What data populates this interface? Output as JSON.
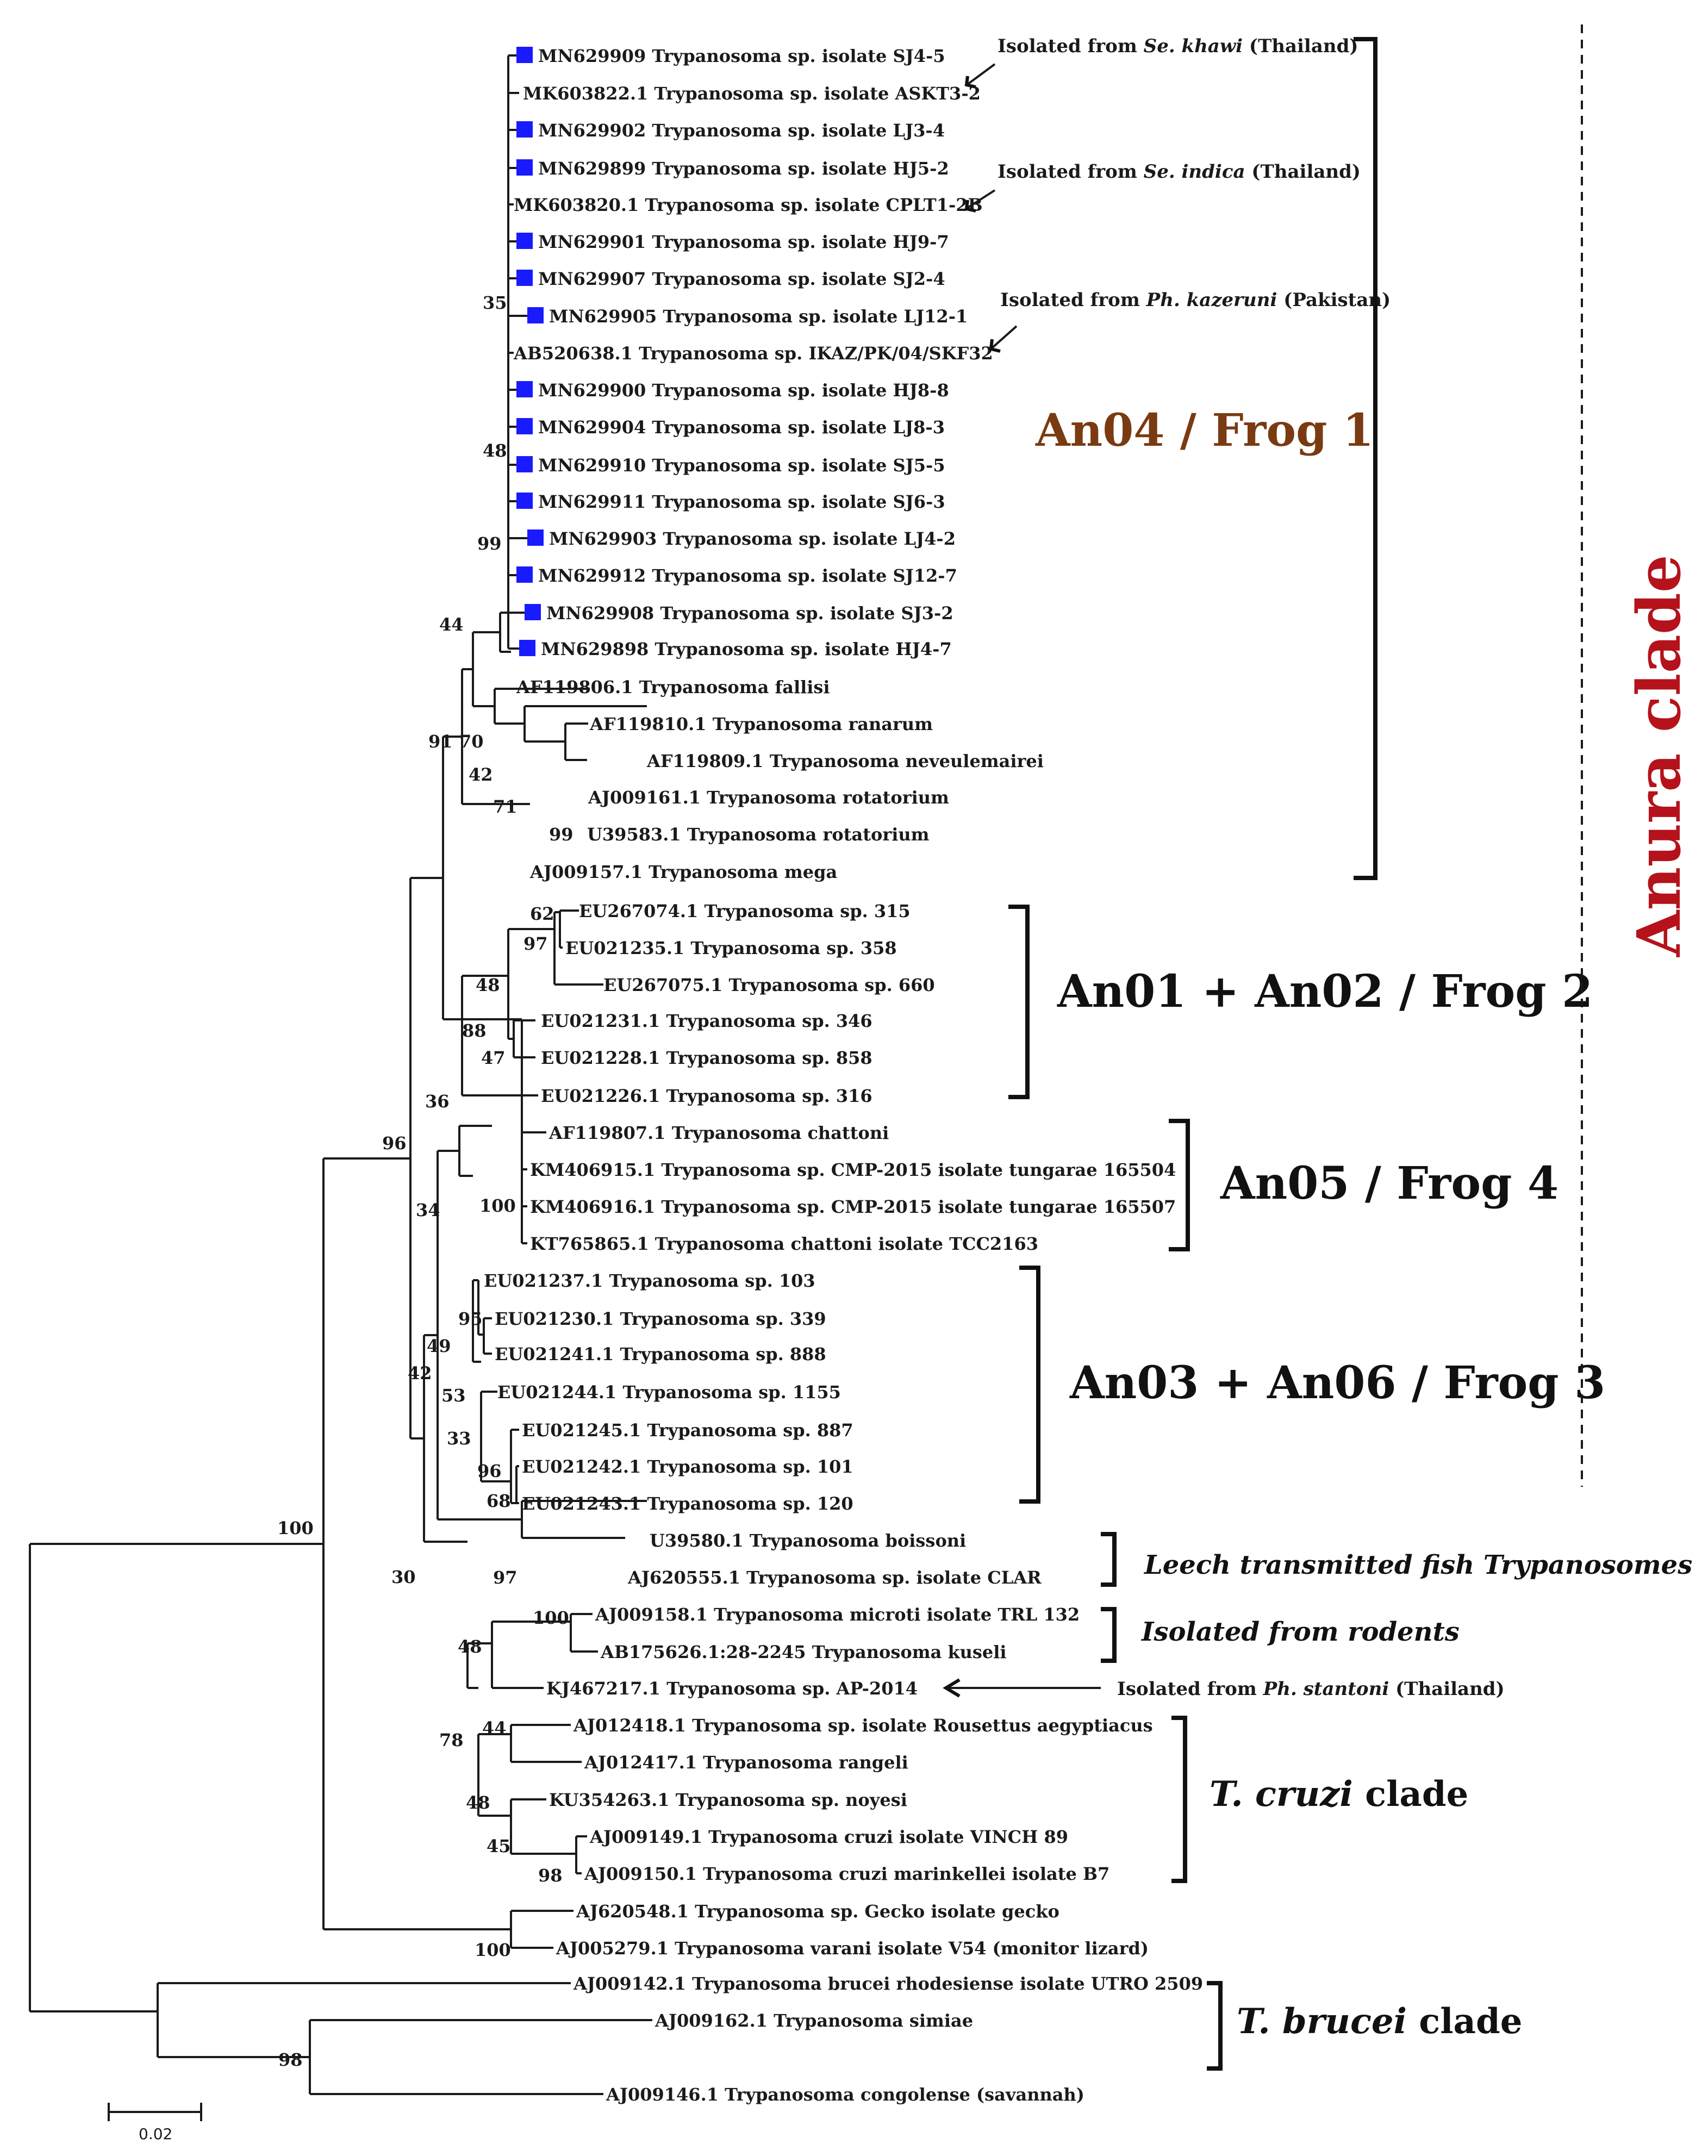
{
  "leaves": [
    "MN629909 Trypanosoma sp. isolate SJ4-5",
    "MK603822.1 Trypanosoma sp. isolate ASKT3-2",
    "MN629902 Trypanosoma sp. isolate LJ3-4",
    "MN629899 Trypanosoma sp. isolate HJ5-2",
    "MK603820.1 Trypanosoma sp. isolate CPLT1-2B",
    "MN629901 Trypanosoma sp. isolate HJ9-7",
    "MN629907 Trypanosoma sp. isolate SJ2-4",
    "MN629905 Trypanosoma sp. isolate LJ12-1",
    "AB520638.1 Trypanosoma sp. IKAZ/PK/04/SKF32",
    "MN629900 Trypanosoma sp. isolate HJ8-8",
    "MN629904 Trypanosoma sp. isolate LJ8-3",
    "MN629910 Trypanosoma sp. isolate SJ5-5",
    "MN629911 Trypanosoma sp. isolate SJ6-3",
    "MN629903 Trypanosoma sp. isolate LJ4-2",
    "MN629912 Trypanosoma sp. isolate SJ12-7",
    "MN629908 Trypanosoma sp. isolate SJ3-2",
    "MN629898 Trypanosoma sp. isolate HJ4-7",
    "AF119806.1 Trypanosoma fallisi",
    "AF119810.1 Trypanosoma ranarum",
    "AF119809.1 Trypanosoma neveulemairei",
    "AJ009161.1 Trypanosoma rotatorium",
    "U39583.1 Trypanosoma rotatorium",
    "AJ009157.1 Trypanosoma mega",
    "EU267074.1 Trypanosoma sp. 315",
    "EU021235.1 Trypanosoma sp. 358",
    "EU267075.1 Trypanosoma sp. 660",
    "EU021231.1 Trypanosoma sp. 346",
    "EU021228.1 Trypanosoma sp. 858",
    "EU021226.1 Trypanosoma sp. 316",
    "AF119807.1 Trypanosoma chattoni",
    "KM406915.1 Trypanosoma sp. CMP-2015 isolate tungarae 165504",
    "KM406916.1 Trypanosoma sp. CMP-2015 isolate tungarae 165507",
    "KT765865.1 Trypanosoma chattoni isolate TCC2163",
    "EU021237.1 Trypanosoma sp. 103",
    "EU021230.1 Trypanosoma sp. 339",
    "EU021241.1 Trypanosoma sp. 888",
    "EU021244.1 Trypanosoma sp. 1155",
    "EU021245.1 Trypanosoma sp. 887",
    "EU021242.1 Trypanosoma sp. 101",
    "EU021243.1 Trypanosoma sp. 120",
    "U39580.1 Trypanosoma boissoni",
    "AJ620555.1 Trypanosoma sp. isolate CLAR",
    "AJ009158.1 Trypanosoma microti isolate TRL 132",
    "AB175626.1:28-2245 Trypanosoma kuseli",
    "KJ467217.1 Trypanosoma sp. AP-2014",
    "AJ012418.1 Trypanosoma sp. isolate Rousettus aegyptiacus",
    "AJ012417.1 Trypanosoma rangeli",
    "KU354263.1 Trypanosoma sp. noyesi",
    "AJ009149.1 Trypanosoma cruzi isolate VINCH 89",
    "AJ009150.1 Trypanosoma cruzi marinkellei isolate B7",
    "AJ620548.1 Trypanosoma sp. Gecko isolate gecko",
    "AJ005279.1 Trypanosoma varani isolate V54 (monitor lizard)",
    "AJ009142.1 Trypanosoma brucei rhodesiense isolate UTRO 2509",
    "AJ009162.1 Trypanosoma simiae",
    "AJ009146.1 Trypanosoma congolense (savannah)"
  ],
  "bootstraps": [
    "35",
    "48",
    "99",
    "44",
    "91",
    "70",
    "42",
    "71",
    "99",
    "62",
    "97",
    "48",
    "88",
    "47",
    "36",
    "96",
    "100",
    "34",
    "95",
    "49",
    "53",
    "42",
    "33",
    "96",
    "68",
    "100",
    "97",
    "30",
    "100",
    "48",
    "44",
    "78",
    "48",
    "45",
    "98",
    "100",
    "98"
  ],
  "notes": {
    "n1": {
      "pre": "Isolated from ",
      "italic": "Se. khawi",
      "post": " (Thailand)"
    },
    "n2": {
      "pre": "Isolated from ",
      "italic": "Se. indica",
      "post": " (Thailand)"
    },
    "n3": {
      "pre": "Isolated from ",
      "italic": "Ph. kazeruni",
      "post": " (Pakistan)"
    },
    "n4": {
      "pre": "Isolated from ",
      "italic": "Ph. stantoni",
      "post": " (Thailand)"
    }
  },
  "groups": {
    "frog1": "An04 / Frog 1",
    "frog2": "An01 + An02 / Frog 2",
    "frog4": "An05 / Frog 4",
    "frog3": "An03 + An06 / Frog 3",
    "leech": "Leech transmitted fish Trypanosomes",
    "rodents": "Isolated from rodents",
    "cruzi_it": "T. cruzi",
    "cruzi_rest": " clade",
    "brucei_it": "T. brucei",
    "brucei_rest": " clade",
    "anura": "Anura clade"
  },
  "scale": {
    "label": "0.02"
  },
  "colors": {
    "marker": "#1a1aff",
    "anura": "#b5121b",
    "frog1": "#7a3a12"
  }
}
